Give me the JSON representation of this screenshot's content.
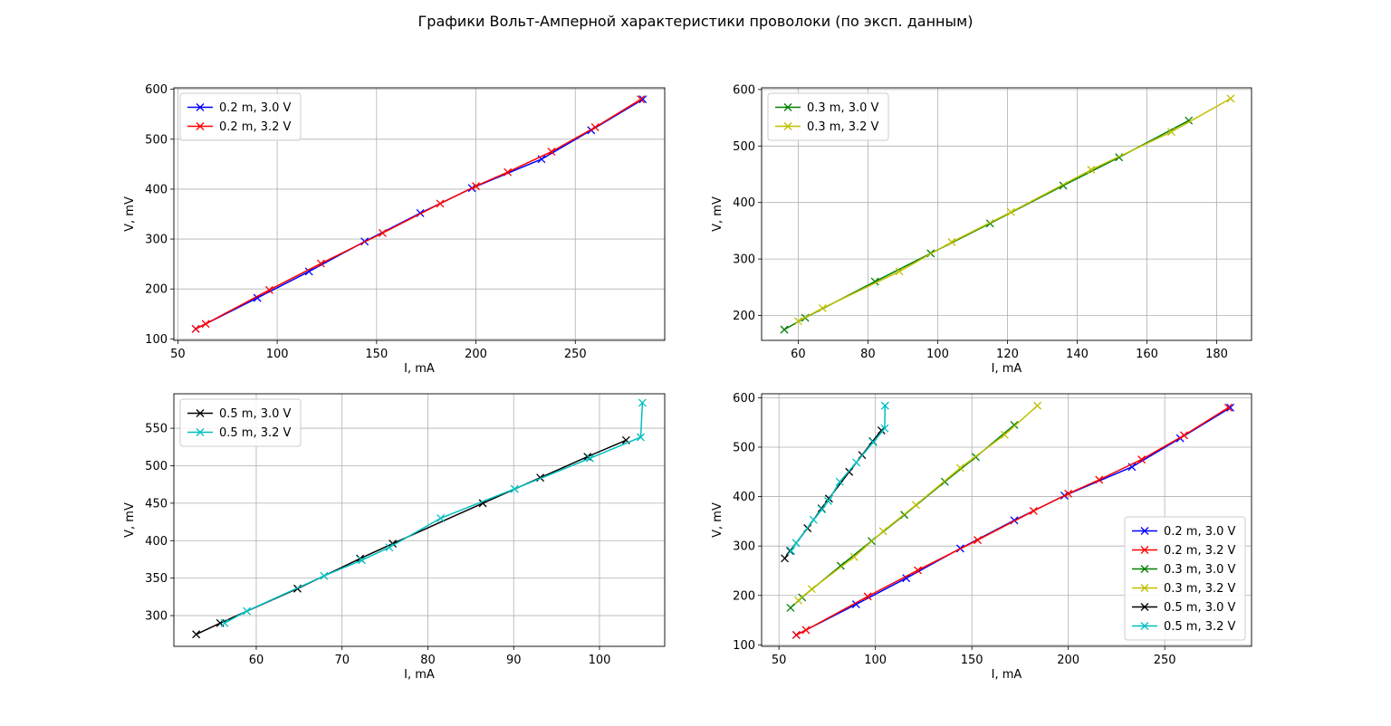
{
  "title": "Графики Вольт-Амперной характеристики проволоки (по эксп. данным)",
  "chart_data": [
    {
      "type": "line",
      "xlabel": "I, mA",
      "ylabel": "V, mV",
      "xlim": [
        48,
        295
      ],
      "ylim": [
        97,
        603
      ],
      "xticks": [
        50,
        100,
        150,
        200,
        250
      ],
      "yticks": [
        100,
        200,
        300,
        400,
        500,
        600
      ],
      "grid": true,
      "legend_loc": "upper-left",
      "series": [
        {
          "name": "0.2 m, 3.0 V",
          "color": "#0000ff",
          "x": [
            59,
            90,
            116,
            144,
            172,
            198,
            233,
            258,
            284
          ],
          "y": [
            120,
            182,
            235,
            295,
            352,
            402,
            460,
            518,
            580
          ]
        },
        {
          "name": "0.2 m, 3.2 V",
          "color": "#ff0000",
          "x": [
            59,
            64,
            96,
            122,
            153,
            182,
            200,
            216,
            238,
            260,
            283
          ],
          "y": [
            120,
            130,
            198,
            251,
            312,
            371,
            406,
            434,
            475,
            524,
            580
          ]
        }
      ]
    },
    {
      "type": "line",
      "xlabel": "I, mA",
      "ylabel": "V, mV",
      "xlim": [
        49.5,
        190
      ],
      "ylim": [
        156,
        603
      ],
      "xticks": [
        60,
        80,
        100,
        120,
        140,
        160,
        180
      ],
      "yticks": [
        200,
        300,
        400,
        500,
        600
      ],
      "grid": true,
      "legend_loc": "upper-left",
      "series": [
        {
          "name": "0.3 m, 3.0 V",
          "color": "#008000",
          "x": [
            56,
            62,
            82,
            98,
            115,
            136,
            152,
            172
          ],
          "y": [
            175,
            196,
            260,
            310,
            363,
            430,
            480,
            545
          ]
        },
        {
          "name": "0.3 m, 3.2 V",
          "color": "#bfbf00",
          "x": [
            60,
            67,
            89,
            104,
            121,
            144,
            167,
            184
          ],
          "y": [
            190,
            213,
            278,
            330,
            383,
            458,
            525,
            584
          ]
        }
      ]
    },
    {
      "type": "line",
      "xlabel": "I, mA",
      "ylabel": "V, mV",
      "xlim": [
        50.4,
        107.6
      ],
      "ylim": [
        259,
        596
      ],
      "xticks": [
        60,
        70,
        80,
        90,
        100
      ],
      "yticks": [
        300,
        350,
        400,
        450,
        500,
        550
      ],
      "grid": true,
      "legend_loc": "upper-left",
      "series": [
        {
          "name": "0.5 m, 3.0 V",
          "color": "#000000",
          "x": [
            53,
            55.8,
            64.8,
            72.1,
            75.9,
            86.4,
            93.1,
            98.6,
            103.1
          ],
          "y": [
            275,
            290,
            336,
            376,
            396,
            450,
            484,
            512,
            534
          ]
        },
        {
          "name": "0.5 m, 3.2 V",
          "color": "#00bfbf",
          "x": [
            56.3,
            58.9,
            67.9,
            72.3,
            75.5,
            81.5,
            90.1,
            98.9,
            104.8,
            105
          ],
          "y": [
            290,
            306,
            353,
            374,
            391,
            430,
            469,
            510,
            538,
            584
          ]
        }
      ]
    },
    {
      "type": "line",
      "xlabel": "I, mA",
      "ylabel": "V, mV",
      "xlim": [
        41,
        295
      ],
      "ylim": [
        97,
        608
      ],
      "xticks": [
        50,
        100,
        150,
        200,
        250
      ],
      "yticks": [
        100,
        200,
        300,
        400,
        500,
        600
      ],
      "grid": true,
      "legend_loc": "lower-right",
      "series": [
        {
          "name": "0.2 m, 3.0 V",
          "color": "#0000ff",
          "x": [
            59,
            90,
            116,
            144,
            172,
            198,
            233,
            258,
            284
          ],
          "y": [
            120,
            182,
            235,
            295,
            352,
            402,
            460,
            518,
            580
          ]
        },
        {
          "name": "0.2 m, 3.2 V",
          "color": "#ff0000",
          "x": [
            59,
            64,
            96,
            122,
            153,
            182,
            200,
            216,
            238,
            260,
            283
          ],
          "y": [
            120,
            130,
            198,
            251,
            312,
            371,
            406,
            434,
            475,
            524,
            580
          ]
        },
        {
          "name": "0.3 m, 3.0 V",
          "color": "#008000",
          "x": [
            56,
            62,
            82,
            98,
            115,
            136,
            152,
            172
          ],
          "y": [
            175,
            196,
            260,
            310,
            363,
            430,
            480,
            545
          ]
        },
        {
          "name": "0.3 m, 3.2 V",
          "color": "#bfbf00",
          "x": [
            60,
            67,
            89,
            104,
            121,
            144,
            167,
            184
          ],
          "y": [
            190,
            213,
            278,
            330,
            383,
            458,
            525,
            584
          ]
        },
        {
          "name": "0.5 m, 3.0 V",
          "color": "#000000",
          "x": [
            53,
            55.8,
            64.8,
            72.1,
            75.9,
            86.4,
            93.1,
            98.6,
            103.1
          ],
          "y": [
            275,
            290,
            336,
            376,
            396,
            450,
            484,
            512,
            534
          ]
        },
        {
          "name": "0.5 m, 3.2 V",
          "color": "#00bfbf",
          "x": [
            56.3,
            58.9,
            67.9,
            72.3,
            75.5,
            81.5,
            90.1,
            98.9,
            104.8,
            105
          ],
          "y": [
            290,
            306,
            353,
            374,
            391,
            430,
            469,
            510,
            538,
            584
          ]
        }
      ]
    }
  ]
}
